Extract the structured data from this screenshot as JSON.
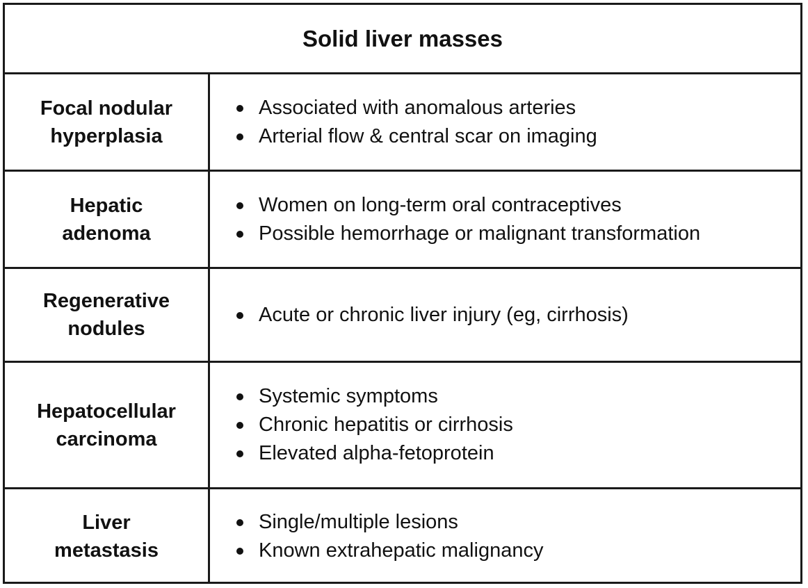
{
  "title": "Solid liver masses",
  "rows": [
    {
      "name": "Focal nodular\nhyperplasia",
      "features": [
        "Associated with anomalous arteries",
        "Arterial flow & central scar on imaging"
      ]
    },
    {
      "name": "Hepatic\nadenoma",
      "features": [
        "Women on long-term oral contraceptives",
        "Possible hemorrhage or malignant transformation"
      ]
    },
    {
      "name": "Regenerative\nnodules",
      "features": [
        "Acute or chronic liver injury (eg, cirrhosis)"
      ]
    },
    {
      "name": "Hepatocellular\ncarcinoma",
      "features": [
        "Systemic symptoms",
        "Chronic hepatitis or cirrhosis",
        "Elevated alpha-fetoprotein"
      ]
    },
    {
      "name": "Liver\nmetastasis",
      "features": [
        "Single/multiple lesions",
        "Known extrahepatic malignancy"
      ]
    }
  ]
}
